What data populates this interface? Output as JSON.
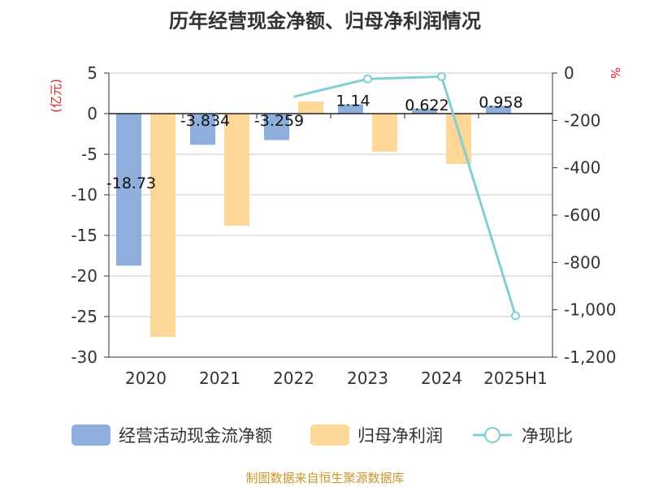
{
  "chart_data": {
    "type": "bar",
    "title": "历年经营现金净额、归母净利润情况",
    "categories": [
      "2020",
      "2021",
      "2022",
      "2023",
      "2024",
      "2025H1"
    ],
    "y_left": {
      "unit": "(亿元)",
      "ylim": [
        -30,
        5
      ],
      "ticks": [
        5,
        0,
        -5,
        -10,
        -15,
        -20,
        -25,
        -30
      ]
    },
    "y_right": {
      "unit": "%",
      "ylim": [
        -1200,
        0
      ],
      "ticks": [
        0,
        -200,
        -400,
        -600,
        -800,
        -1000,
        -1200
      ],
      "tick_labels": [
        "0",
        "-200",
        "-400",
        "-600",
        "-800",
        "-1,000",
        "-1,200"
      ]
    },
    "series": [
      {
        "name": "经营活动现金流净额",
        "kind": "bar",
        "axis": "left",
        "color": "#8eaedb",
        "values": [
          -18.73,
          -3.834,
          -3.259,
          1.14,
          0.622,
          0.958
        ],
        "labels": [
          "-18.73",
          "-3.834",
          "-3.259",
          "1.14",
          "0.622",
          "0.958"
        ]
      },
      {
        "name": "归母净利润",
        "kind": "bar",
        "axis": "left",
        "color": "#fdd796",
        "values": [
          -27.5,
          -13.8,
          1.5,
          -4.7,
          -6.2,
          -0.05
        ]
      },
      {
        "name": "净现比",
        "kind": "line",
        "axis": "right",
        "color": "#7ecfd6",
        "points": [
          [
            2,
            -100
          ],
          [
            3,
            -25
          ],
          [
            4,
            -15
          ],
          [
            5,
            -1025
          ]
        ]
      }
    ],
    "grid": true,
    "legend_position": "bottom"
  },
  "source": "制图数据来自恒生聚源数据库"
}
